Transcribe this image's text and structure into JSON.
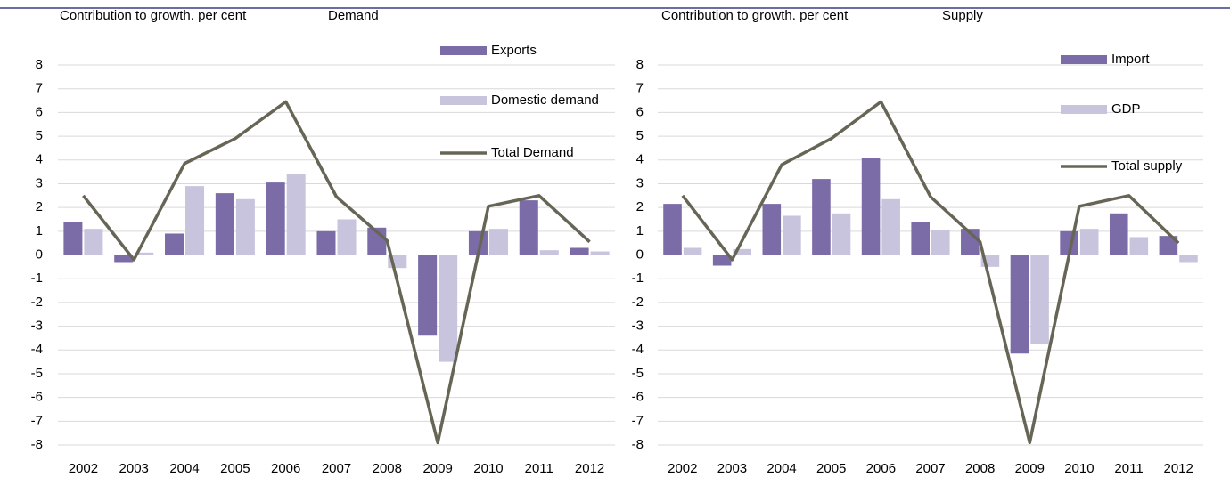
{
  "chart_data": [
    {
      "type": "bar_line",
      "title": "Contribution to growth. per cent",
      "subtitle": "Demand",
      "categories": [
        "2002",
        "2003",
        "2004",
        "2005",
        "2006",
        "2007",
        "2008",
        "2009",
        "2010",
        "2011",
        "2012"
      ],
      "series": [
        {
          "name": "Exports",
          "type": "bar",
          "color": "#7b6ba7",
          "values": [
            1.4,
            -0.3,
            0.9,
            2.6,
            3.05,
            1.0,
            1.15,
            -3.4,
            1.0,
            2.3,
            0.3
          ]
        },
        {
          "name": "Domestic demand",
          "type": "bar",
          "color": "#c8c4de",
          "values": [
            1.1,
            0.1,
            2.9,
            2.35,
            3.4,
            1.5,
            -0.55,
            -4.5,
            1.1,
            0.2,
            0.15
          ]
        },
        {
          "name": "Total Demand",
          "type": "line",
          "color": "#676656",
          "values": [
            2.5,
            -0.2,
            3.85,
            4.9,
            6.45,
            2.45,
            0.6,
            -7.9,
            2.05,
            2.5,
            0.55
          ]
        }
      ],
      "ylim": [
        -8,
        8
      ],
      "yticks": [
        8,
        7,
        6,
        5,
        4,
        3,
        2,
        1,
        0,
        -1,
        -2,
        -3,
        -4,
        -5,
        -6,
        -7,
        -8
      ],
      "grid": true
    },
    {
      "type": "bar_line",
      "title": "Contribution to growth. per cent",
      "subtitle": "Supply",
      "categories": [
        "2002",
        "2003",
        "2004",
        "2005",
        "2006",
        "2007",
        "2008",
        "2009",
        "2010",
        "2011",
        "2012"
      ],
      "series": [
        {
          "name": "Import",
          "type": "bar",
          "color": "#7b6ba7",
          "values": [
            2.15,
            -0.45,
            2.15,
            3.2,
            4.1,
            1.4,
            1.1,
            -4.15,
            1.0,
            1.75,
            0.8
          ]
        },
        {
          "name": "GDP",
          "type": "bar",
          "color": "#c8c4de",
          "values": [
            0.3,
            0.25,
            1.65,
            1.75,
            2.35,
            1.05,
            -0.5,
            -3.75,
            1.1,
            0.75,
            -0.3
          ]
        },
        {
          "name": "Total supply",
          "type": "line",
          "color": "#676656",
          "values": [
            2.5,
            -0.2,
            3.8,
            4.9,
            6.45,
            2.45,
            0.55,
            -7.9,
            2.05,
            2.5,
            0.5
          ]
        }
      ],
      "ylim": [
        -8,
        8
      ],
      "yticks": [
        8,
        7,
        6,
        5,
        4,
        3,
        2,
        1,
        0,
        -1,
        -2,
        -3,
        -4,
        -5,
        -6,
        -7,
        -8
      ],
      "grid": true
    }
  ]
}
